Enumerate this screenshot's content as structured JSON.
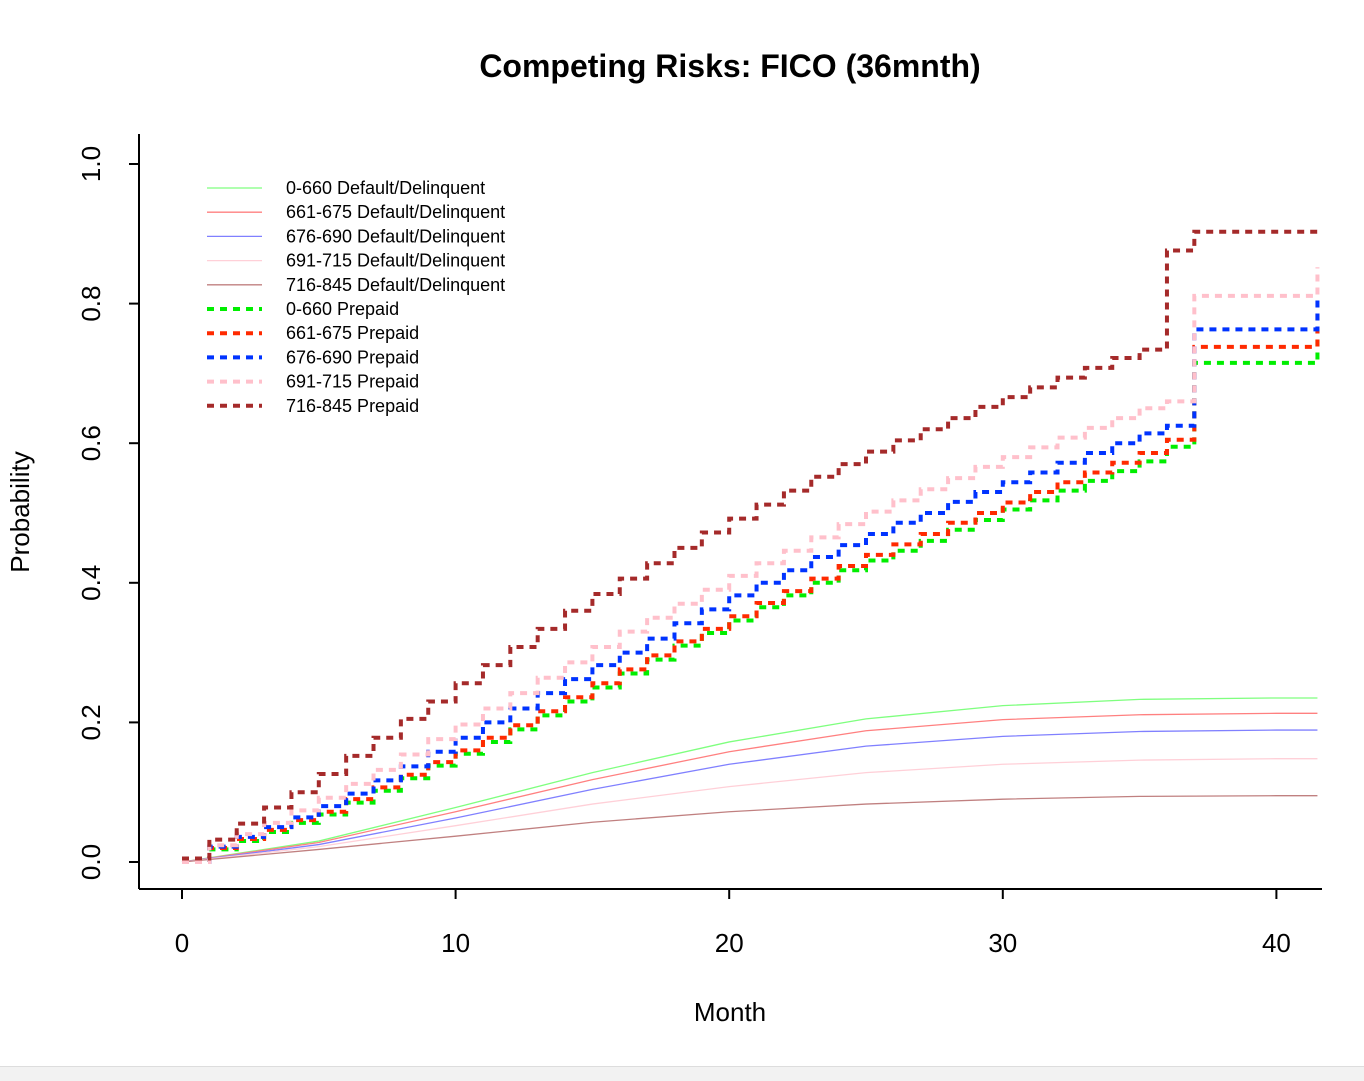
{
  "chart_data": {
    "type": "line",
    "title": "Competing Risks: FICO (36mnth)",
    "xlabel": "Month",
    "ylabel": "Probability",
    "xlim": [
      0,
      41.5
    ],
    "ylim": [
      0,
      1.0
    ],
    "xticks": [
      "0",
      "10",
      "20",
      "30",
      "40"
    ],
    "yticks": [
      "0.0",
      "0.2",
      "0.4",
      "0.6",
      "0.8",
      "1.0"
    ],
    "grid": false,
    "legend_position": "top-left",
    "series": [
      {
        "name": "0-660 Default/Delinquent",
        "color": "#7fff7f",
        "style": "solid",
        "x": [
          0,
          5,
          10,
          15,
          20,
          25,
          30,
          35,
          40,
          41.5
        ],
        "y": [
          0,
          0.03,
          0.078,
          0.128,
          0.172,
          0.205,
          0.224,
          0.233,
          0.235,
          0.235
        ]
      },
      {
        "name": "661-675 Default/Delinquent",
        "color": "#ff8080",
        "style": "solid",
        "x": [
          0,
          5,
          10,
          15,
          20,
          25,
          30,
          35,
          40,
          41.5
        ],
        "y": [
          0,
          0.028,
          0.072,
          0.118,
          0.158,
          0.188,
          0.204,
          0.211,
          0.213,
          0.213
        ]
      },
      {
        "name": "676-690 Default/Delinquent",
        "color": "#8080ff",
        "style": "solid",
        "x": [
          0,
          5,
          10,
          15,
          20,
          25,
          30,
          35,
          40,
          41.5
        ],
        "y": [
          0,
          0.025,
          0.063,
          0.104,
          0.14,
          0.166,
          0.18,
          0.187,
          0.189,
          0.189
        ]
      },
      {
        "name": "691-715 Default/Delinquent",
        "color": "#ffd0d8",
        "style": "solid",
        "x": [
          0,
          5,
          10,
          15,
          20,
          25,
          30,
          35,
          40,
          41.5
        ],
        "y": [
          0,
          0.022,
          0.052,
          0.083,
          0.108,
          0.128,
          0.14,
          0.146,
          0.148,
          0.148
        ]
      },
      {
        "name": "716-845 Default/Delinquent",
        "color": "#c08080",
        "style": "solid",
        "x": [
          0,
          5,
          10,
          15,
          20,
          25,
          30,
          35,
          40,
          41.5
        ],
        "y": [
          0,
          0.018,
          0.037,
          0.057,
          0.072,
          0.083,
          0.09,
          0.094,
          0.095,
          0.095
        ]
      },
      {
        "name": "0-660 Prepaid",
        "color": "#00ee00",
        "style": "dashed",
        "x": [
          0,
          1,
          2,
          3,
          4,
          5,
          6,
          7,
          8,
          9,
          10,
          11,
          12,
          13,
          14,
          15,
          16,
          17,
          18,
          19,
          20,
          21,
          22,
          23,
          24,
          25,
          26,
          27,
          28,
          29,
          30,
          31,
          32,
          33,
          34,
          35,
          36,
          37,
          41.5
        ],
        "y": [
          0,
          0.018,
          0.03,
          0.043,
          0.056,
          0.068,
          0.085,
          0.102,
          0.12,
          0.138,
          0.155,
          0.172,
          0.19,
          0.21,
          0.23,
          0.25,
          0.27,
          0.29,
          0.31,
          0.328,
          0.346,
          0.365,
          0.382,
          0.4,
          0.418,
          0.432,
          0.446,
          0.46,
          0.476,
          0.49,
          0.505,
          0.518,
          0.532,
          0.546,
          0.56,
          0.574,
          0.595,
          0.715,
          0.762
        ]
      },
      {
        "name": "661-675 Prepaid",
        "color": "#ff2a00",
        "style": "dashed",
        "x": [
          0,
          1,
          2,
          3,
          4,
          5,
          6,
          7,
          8,
          9,
          10,
          11,
          12,
          13,
          14,
          15,
          16,
          17,
          18,
          19,
          20,
          21,
          22,
          23,
          24,
          25,
          26,
          27,
          28,
          29,
          30,
          31,
          32,
          33,
          34,
          35,
          36,
          37,
          41.5
        ],
        "y": [
          0,
          0.02,
          0.033,
          0.046,
          0.06,
          0.072,
          0.09,
          0.107,
          0.125,
          0.143,
          0.16,
          0.178,
          0.196,
          0.216,
          0.236,
          0.256,
          0.276,
          0.296,
          0.316,
          0.334,
          0.352,
          0.371,
          0.388,
          0.406,
          0.424,
          0.44,
          0.455,
          0.47,
          0.486,
          0.5,
          0.515,
          0.53,
          0.544,
          0.558,
          0.572,
          0.586,
          0.605,
          0.738,
          0.786
        ]
      },
      {
        "name": "676-690 Prepaid",
        "color": "#0033ff",
        "style": "dashed",
        "x": [
          0,
          1,
          2,
          3,
          4,
          5,
          6,
          7,
          8,
          9,
          10,
          11,
          12,
          13,
          14,
          15,
          16,
          17,
          18,
          19,
          20,
          21,
          22,
          23,
          24,
          25,
          26,
          27,
          28,
          29,
          30,
          31,
          32,
          33,
          34,
          35,
          36,
          37,
          41.5
        ],
        "y": [
          0,
          0.022,
          0.036,
          0.05,
          0.064,
          0.08,
          0.098,
          0.117,
          0.137,
          0.158,
          0.178,
          0.2,
          0.22,
          0.242,
          0.262,
          0.282,
          0.3,
          0.32,
          0.342,
          0.362,
          0.382,
          0.4,
          0.418,
          0.437,
          0.454,
          0.47,
          0.486,
          0.5,
          0.516,
          0.53,
          0.544,
          0.558,
          0.572,
          0.586,
          0.6,
          0.614,
          0.625,
          0.763,
          0.808
        ]
      },
      {
        "name": "691-715 Prepaid",
        "color": "#ffc0cb",
        "style": "dashed",
        "x": [
          0,
          1,
          2,
          3,
          4,
          5,
          6,
          7,
          8,
          9,
          10,
          11,
          12,
          13,
          14,
          15,
          16,
          17,
          18,
          19,
          20,
          21,
          22,
          23,
          24,
          25,
          26,
          27,
          28,
          29,
          30,
          31,
          32,
          33,
          34,
          35,
          36,
          37,
          41.5
        ],
        "y": [
          0,
          0.024,
          0.04,
          0.056,
          0.074,
          0.092,
          0.112,
          0.132,
          0.154,
          0.176,
          0.197,
          0.22,
          0.242,
          0.264,
          0.286,
          0.308,
          0.33,
          0.35,
          0.37,
          0.39,
          0.41,
          0.428,
          0.446,
          0.465,
          0.484,
          0.502,
          0.518,
          0.534,
          0.55,
          0.566,
          0.58,
          0.594,
          0.608,
          0.622,
          0.636,
          0.65,
          0.66,
          0.811,
          0.852
        ]
      },
      {
        "name": "716-845 Prepaid",
        "color": "#a52a2a",
        "style": "dashed",
        "x": [
          0,
          1,
          2,
          3,
          4,
          5,
          6,
          7,
          8,
          9,
          10,
          11,
          12,
          13,
          14,
          15,
          16,
          17,
          18,
          19,
          20,
          21,
          22,
          23,
          24,
          25,
          26,
          27,
          28,
          29,
          30,
          31,
          32,
          33,
          34,
          35,
          36,
          37,
          41.5
        ],
        "y": [
          0.005,
          0.032,
          0.055,
          0.078,
          0.1,
          0.126,
          0.152,
          0.178,
          0.205,
          0.23,
          0.256,
          0.282,
          0.308,
          0.334,
          0.36,
          0.384,
          0.406,
          0.428,
          0.45,
          0.472,
          0.492,
          0.512,
          0.532,
          0.552,
          0.57,
          0.588,
          0.604,
          0.62,
          0.636,
          0.652,
          0.666,
          0.68,
          0.694,
          0.708,
          0.722,
          0.734,
          0.876,
          0.903,
          0.905
        ]
      }
    ]
  }
}
